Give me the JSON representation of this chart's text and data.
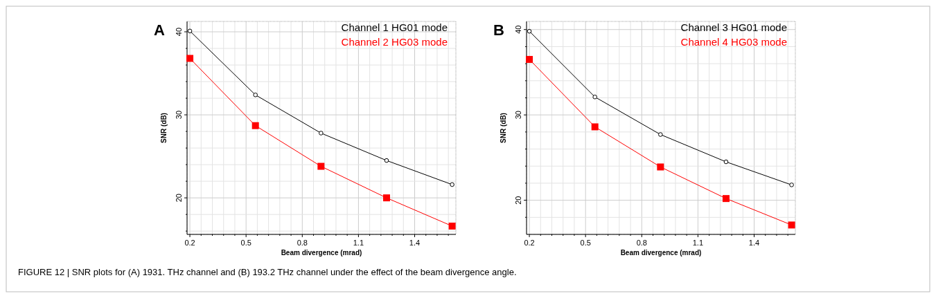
{
  "chart_data": [
    {
      "type": "line",
      "title": "A",
      "xlabel": "Beam divergence (mrad)",
      "ylabel": "SNR (dB)",
      "x": [
        0.2,
        0.55,
        0.9,
        1.25,
        1.6
      ],
      "series": [
        {
          "name": "Channel 1 HG01 mode",
          "color": "#000000",
          "marker": "circle",
          "values": [
            40.1,
            32.4,
            27.8,
            24.5,
            21.6
          ]
        },
        {
          "name": "Channel 2 HG03 mode",
          "color": "#ff0000",
          "marker": "square",
          "values": [
            36.8,
            28.7,
            23.8,
            20.0,
            16.6
          ]
        }
      ],
      "xlim": [
        0.185,
        1.62
      ],
      "xticks": [
        0.2,
        {
          "value": 0.26,
          "label": null
        },
        {
          "value": 0.32,
          "label": null
        },
        {
          "value": 0.38,
          "label": null
        },
        {
          "value": 0.44,
          "label": null
        },
        0.5,
        {
          "value": 0.56,
          "label": null
        },
        {
          "value": 0.62,
          "label": null
        },
        {
          "value": 0.68,
          "label": null
        },
        {
          "value": 0.74,
          "label": null
        },
        0.8,
        {
          "value": 0.86,
          "label": null
        },
        {
          "value": 0.92,
          "label": null
        },
        {
          "value": 0.98,
          "label": null
        },
        {
          "value": 1.04,
          "label": null
        },
        1.1,
        {
          "value": 1.16,
          "label": null
        },
        {
          "value": 1.22,
          "label": null
        },
        {
          "value": 1.28,
          "label": null
        },
        {
          "value": 1.34,
          "label": null
        },
        1.4,
        {
          "value": 1.46,
          "label": null
        },
        {
          "value": 1.52,
          "label": null
        },
        {
          "value": 1.58,
          "label": null
        }
      ],
      "ylim": [
        15.6,
        41.25
      ],
      "yticks": [
        {
          "value": 16,
          "label": null
        },
        {
          "value": 18,
          "label": null
        },
        20,
        {
          "value": 22,
          "label": null
        },
        {
          "value": 24,
          "label": null
        },
        {
          "value": 26,
          "label": null
        },
        {
          "value": 28,
          "label": null
        },
        30,
        {
          "value": 32,
          "label": null
        },
        {
          "value": 34,
          "label": null
        },
        {
          "value": 36,
          "label": null
        },
        {
          "value": 38,
          "label": null
        },
        40
      ],
      "grid": true,
      "legend": "top right",
      "annotations": [
        "FIGURE 12 | SNR plots for (A) 1931. THz channel and (B) 193.2 THz channel under the effect of the beam divergence angle."
      ]
    },
    {
      "type": "line",
      "title": "B",
      "xlabel": "Beam divergence (mrad)",
      "ylabel": "SNR (dB)",
      "x": [
        0.2,
        0.55,
        0.9,
        1.25,
        1.6
      ],
      "series": [
        {
          "name": "Channel 3 HG01 mode",
          "color": "#000000",
          "marker": "circle",
          "values": [
            39.8,
            32.1,
            27.7,
            24.5,
            21.8
          ]
        },
        {
          "name": "Channel 4 HG03 mode",
          "color": "#ff0000",
          "marker": "square",
          "values": [
            36.5,
            28.6,
            23.9,
            20.2,
            17.1
          ]
        }
      ],
      "xlim": [
        0.185,
        1.62
      ],
      "xticks": [
        0.2,
        {
          "value": 0.26,
          "label": null
        },
        {
          "value": 0.32,
          "label": null
        },
        {
          "value": 0.38,
          "label": null
        },
        {
          "value": 0.44,
          "label": null
        },
        0.5,
        {
          "value": 0.56,
          "label": null
        },
        {
          "value": 0.62,
          "label": null
        },
        {
          "value": 0.68,
          "label": null
        },
        {
          "value": 0.74,
          "label": null
        },
        0.8,
        {
          "value": 0.86,
          "label": null
        },
        {
          "value": 0.92,
          "label": null
        },
        {
          "value": 0.98,
          "label": null
        },
        {
          "value": 1.04,
          "label": null
        },
        1.1,
        {
          "value": 1.16,
          "label": null
        },
        {
          "value": 1.22,
          "label": null
        },
        {
          "value": 1.28,
          "label": null
        },
        {
          "value": 1.34,
          "label": null
        },
        1.4,
        {
          "value": 1.46,
          "label": null
        },
        {
          "value": 1.52,
          "label": null
        },
        {
          "value": 1.58,
          "label": null
        }
      ],
      "ylim": [
        16.0,
        40.95
      ],
      "yticks": [
        {
          "value": 18,
          "label": null
        },
        20,
        {
          "value": 22,
          "label": null
        },
        {
          "value": 24,
          "label": null
        },
        {
          "value": 26,
          "label": null
        },
        {
          "value": 28,
          "label": null
        },
        30,
        {
          "value": 32,
          "label": null
        },
        {
          "value": 34,
          "label": null
        },
        {
          "value": 36,
          "label": null
        },
        {
          "value": 38,
          "label": null
        },
        40
      ],
      "grid": true,
      "legend": "top right"
    }
  ]
}
